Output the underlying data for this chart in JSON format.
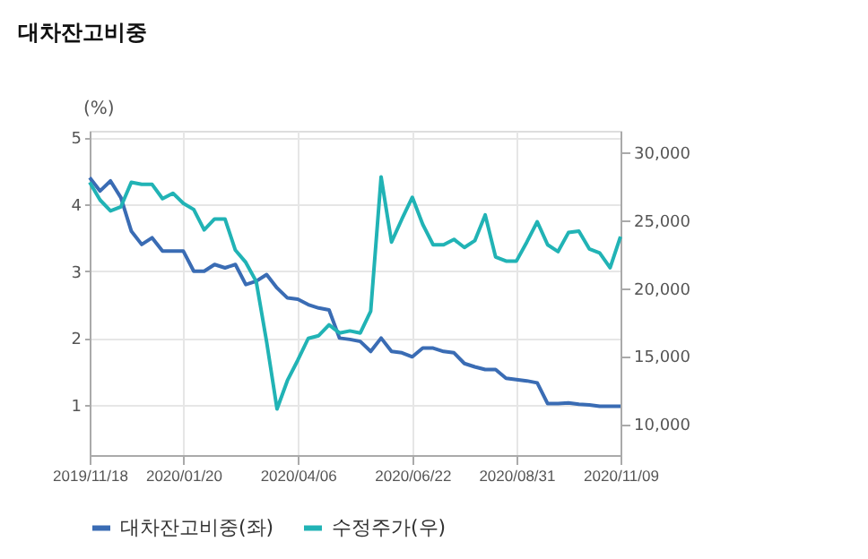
{
  "chart_data": {
    "type": "line",
    "title": "대차잔고비중",
    "ylabel": "(%)",
    "x": [
      "2019-11-18",
      "2019-11-25",
      "2019-12-02",
      "2019-12-09",
      "2019-12-16",
      "2019-12-23",
      "2019-12-30",
      "2020-01-06",
      "2020-01-13",
      "2020-01-20",
      "2020-01-27",
      "2020-02-03",
      "2020-02-10",
      "2020-02-17",
      "2020-02-24",
      "2020-03-02",
      "2020-03-09",
      "2020-03-16",
      "2020-03-23",
      "2020-03-30",
      "2020-04-06",
      "2020-04-13",
      "2020-04-20",
      "2020-04-27",
      "2020-05-04",
      "2020-05-11",
      "2020-05-18",
      "2020-05-25",
      "2020-06-01",
      "2020-06-08",
      "2020-06-15",
      "2020-06-22",
      "2020-06-29",
      "2020-07-06",
      "2020-07-13",
      "2020-07-20",
      "2020-07-27",
      "2020-08-03",
      "2020-08-10",
      "2020-08-17",
      "2020-08-24",
      "2020-08-31",
      "2020-09-07",
      "2020-09-14",
      "2020-09-21",
      "2020-09-28",
      "2020-10-05",
      "2020-10-12",
      "2020-10-19",
      "2020-10-26",
      "2020-11-02",
      "2020-11-09"
    ],
    "series": [
      {
        "name": "대차잔고비중(좌)",
        "color": "#3a6cb4",
        "values": [
          4.4,
          4.2,
          4.35,
          4.1,
          3.6,
          3.4,
          3.5,
          3.3,
          3.3,
          3.3,
          3.0,
          3.0,
          3.1,
          3.05,
          3.1,
          2.8,
          2.85,
          2.95,
          2.75,
          2.6,
          2.58,
          2.5,
          2.45,
          2.42,
          2.0,
          1.98,
          1.95,
          1.8,
          2.0,
          1.8,
          1.78,
          1.72,
          1.85,
          1.85,
          1.8,
          1.78,
          1.62,
          1.57,
          1.53,
          1.53,
          1.4,
          1.38,
          1.36,
          1.33,
          1.02,
          1.02,
          1.03,
          1.01,
          1.0,
          0.98,
          0.98,
          0.98
        ]
      },
      {
        "name": "수정주가(우)",
        "color": "#21b3b5",
        "axis": "y2",
        "values": [
          27800,
          26500,
          25700,
          26000,
          27800,
          27650,
          27650,
          26600,
          27000,
          26250,
          25800,
          24300,
          25100,
          25100,
          22800,
          21900,
          20500,
          16050,
          11100,
          13200,
          14700,
          16300,
          16500,
          17300,
          16700,
          16850,
          16700,
          18300,
          28200,
          23400,
          25100,
          26700,
          24700,
          23200,
          23200,
          23600,
          23000,
          23500,
          25400,
          22300,
          22000,
          22000,
          23400,
          24900,
          23200,
          22700,
          24100,
          24200,
          22900,
          22600,
          21500,
          23800
        ]
      }
    ],
    "xlim": [
      "2019-11-18",
      "2020-11-09"
    ],
    "xticks": [
      {
        "value": "2019-11-18",
        "label": "2019/11/18"
      },
      {
        "value": "2020-01-20",
        "label": "2020/01/20"
      },
      {
        "value": "2020-04-06",
        "label": "2020/04/06"
      },
      {
        "value": "2020-06-22",
        "label": "2020/06/22"
      },
      {
        "value": "2020-08-31",
        "label": "2020/08/31"
      },
      {
        "value": "2020-11-09",
        "label": "2020/11/09"
      }
    ],
    "ylim": [
      0.25,
      5.1
    ],
    "yticks": [
      1,
      2,
      3,
      4,
      5
    ],
    "y2lim": [
      7700,
      31600
    ],
    "y2ticks": [
      {
        "value": 10000,
        "label": "10,000"
      },
      {
        "value": 15000,
        "label": "15,000"
      },
      {
        "value": 20000,
        "label": "20,000"
      },
      {
        "value": 25000,
        "label": "25,000"
      },
      {
        "value": 30000,
        "label": "30,000"
      }
    ],
    "grid": true,
    "legend": "bottom",
    "line_style": "solid",
    "marker": "none"
  }
}
